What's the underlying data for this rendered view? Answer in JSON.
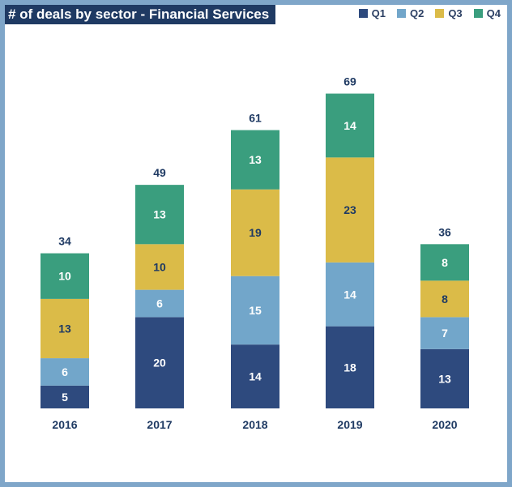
{
  "chart_data": {
    "type": "bar",
    "stacked": true,
    "title": "# of deals by sector - Financial Services",
    "categories": [
      "2016",
      "2017",
      "2018",
      "2019",
      "2020"
    ],
    "series": [
      {
        "name": "Q1",
        "values": [
          5,
          20,
          14,
          18,
          13
        ],
        "color": "#2e4a7e",
        "label_color": "#ffffff"
      },
      {
        "name": "Q2",
        "values": [
          6,
          6,
          15,
          14,
          7
        ],
        "color": "#72a6ca",
        "label_color": "#ffffff"
      },
      {
        "name": "Q3",
        "values": [
          13,
          10,
          19,
          23,
          8
        ],
        "color": "#dbbb48",
        "label_color": "#1f3a63"
      },
      {
        "name": "Q4",
        "values": [
          10,
          13,
          13,
          14,
          8
        ],
        "color": "#3a9e7e",
        "label_color": "#ffffff"
      }
    ],
    "totals": [
      34,
      49,
      61,
      69,
      36
    ],
    "legend_position": "top-right",
    "grid": false
  }
}
